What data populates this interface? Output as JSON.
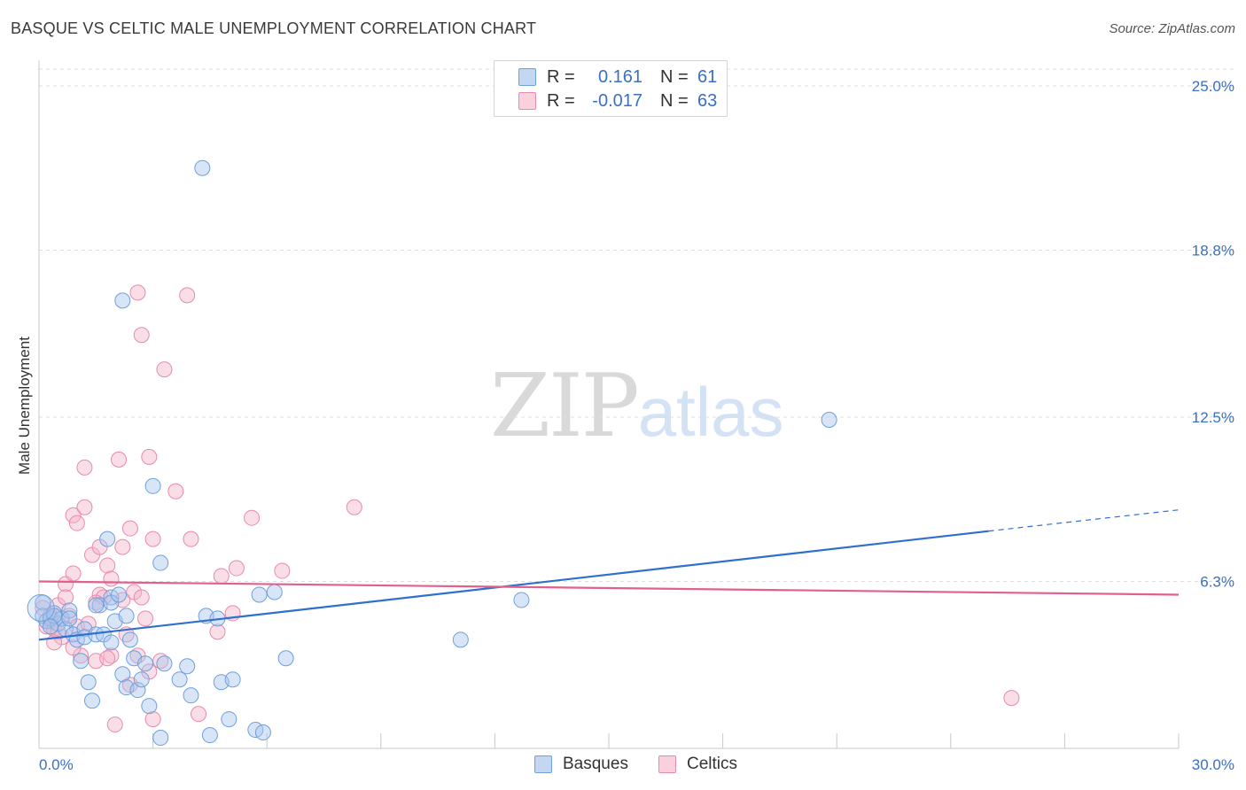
{
  "header": {
    "title": "BASQUE VS CELTIC MALE UNEMPLOYMENT CORRELATION CHART",
    "source": "Source: ZipAtlas.com"
  },
  "watermark": {
    "zip": "ZIP",
    "atlas": "atlas"
  },
  "legend_top": {
    "rows": [
      {
        "r_label": "R =",
        "r_value": "0.161",
        "n_label": "N =",
        "n_value": "61",
        "color": "#a9c6ee"
      },
      {
        "r_label": "R =",
        "r_value": "-0.017",
        "n_label": "N =",
        "n_value": "63",
        "color": "#f5b6c9"
      }
    ]
  },
  "legend_bottom": {
    "items": [
      {
        "label": "Basques",
        "color": "#a9c6ee"
      },
      {
        "label": "Celtics",
        "color": "#f5b6c9"
      }
    ]
  },
  "chart_data": {
    "type": "scatter",
    "title": "BASQUE VS CELTIC MALE UNEMPLOYMENT CORRELATION CHART",
    "xlabel": "",
    "ylabel": "Male Unemployment",
    "xlim": [
      0,
      30
    ],
    "ylim": [
      0,
      25
    ],
    "x_tick_labels": [
      "0.0%",
      "30.0%"
    ],
    "y_ticks": [
      6.3,
      12.5,
      18.8,
      25.0
    ],
    "y_tick_labels": [
      "6.3%",
      "12.5%",
      "18.8%",
      "25.0%"
    ],
    "grid": true,
    "legend_placement": "top-center and bottom",
    "colors": {
      "basques_fill": "#a9c6ee",
      "basques_stroke": "#6f9fdc",
      "basques_line": "#2e6fcf",
      "celtics_fill": "#f5b6c9",
      "celtics_stroke": "#e98aa8",
      "celtics_line": "#e0608e",
      "tick_label": "#3a6fc4"
    },
    "series": [
      {
        "name": "Basques",
        "trend": {
          "x": [
            0,
            25,
            30
          ],
          "y": [
            4.1,
            8.2,
            9.0
          ],
          "dashed_from": 25
        },
        "points": [
          [
            0.1,
            5.5
          ],
          [
            0.1,
            5.0
          ],
          [
            0.2,
            4.8
          ],
          [
            0.3,
            4.9
          ],
          [
            0.4,
            5.1
          ],
          [
            0.5,
            4.7
          ],
          [
            0.6,
            4.9
          ],
          [
            0.7,
            4.5
          ],
          [
            0.8,
            5.2
          ],
          [
            0.9,
            4.3
          ],
          [
            1.0,
            4.1
          ],
          [
            1.1,
            3.3
          ],
          [
            1.2,
            4.5
          ],
          [
            1.2,
            4.2
          ],
          [
            1.3,
            2.5
          ],
          [
            1.4,
            1.8
          ],
          [
            1.5,
            4.3
          ],
          [
            1.6,
            5.4
          ],
          [
            1.7,
            4.3
          ],
          [
            1.8,
            7.9
          ],
          [
            1.9,
            5.7
          ],
          [
            1.9,
            5.5
          ],
          [
            2.0,
            4.8
          ],
          [
            2.1,
            5.8
          ],
          [
            2.2,
            2.8
          ],
          [
            2.3,
            2.3
          ],
          [
            2.3,
            5.0
          ],
          [
            2.4,
            4.1
          ],
          [
            2.5,
            3.4
          ],
          [
            2.6,
            2.2
          ],
          [
            2.8,
            3.2
          ],
          [
            2.9,
            1.6
          ],
          [
            3.0,
            9.9
          ],
          [
            3.2,
            7.0
          ],
          [
            3.3,
            3.2
          ],
          [
            3.7,
            2.6
          ],
          [
            3.9,
            3.1
          ],
          [
            4.0,
            2.0
          ],
          [
            4.3,
            21.9
          ],
          [
            4.4,
            5.0
          ],
          [
            4.5,
            0.5
          ],
          [
            4.7,
            4.9
          ],
          [
            4.8,
            2.5
          ],
          [
            5.0,
            1.1
          ],
          [
            5.1,
            2.6
          ],
          [
            5.7,
            0.7
          ],
          [
            5.8,
            5.8
          ],
          [
            5.9,
            0.6
          ],
          [
            6.2,
            5.9
          ],
          [
            6.5,
            3.4
          ],
          [
            11.1,
            4.1
          ],
          [
            12.7,
            5.6
          ],
          [
            20.8,
            12.4
          ],
          [
            2.2,
            16.9
          ],
          [
            3.2,
            0.4
          ],
          [
            0.4,
            5.0
          ],
          [
            0.8,
            4.9
          ],
          [
            1.5,
            5.4
          ],
          [
            0.3,
            4.6
          ],
          [
            1.9,
            4.0
          ],
          [
            2.7,
            2.6
          ]
        ]
      },
      {
        "name": "Celtics",
        "trend": {
          "x": [
            0,
            30
          ],
          "y": [
            6.3,
            5.8
          ]
        },
        "points": [
          [
            0.1,
            5.3
          ],
          [
            0.2,
            4.6
          ],
          [
            0.3,
            4.8
          ],
          [
            0.4,
            4.5
          ],
          [
            0.5,
            5.4
          ],
          [
            0.6,
            4.2
          ],
          [
            0.7,
            6.2
          ],
          [
            0.7,
            5.7
          ],
          [
            0.8,
            5.0
          ],
          [
            0.9,
            8.8
          ],
          [
            0.9,
            6.6
          ],
          [
            1.0,
            4.6
          ],
          [
            1.0,
            8.5
          ],
          [
            1.1,
            3.5
          ],
          [
            1.2,
            10.6
          ],
          [
            1.2,
            9.1
          ],
          [
            1.4,
            7.3
          ],
          [
            1.5,
            3.3
          ],
          [
            1.6,
            5.8
          ],
          [
            1.6,
            7.6
          ],
          [
            1.7,
            5.7
          ],
          [
            1.8,
            6.9
          ],
          [
            1.9,
            6.4
          ],
          [
            1.9,
            3.5
          ],
          [
            2.0,
            0.9
          ],
          [
            2.1,
            10.9
          ],
          [
            2.2,
            7.6
          ],
          [
            2.3,
            4.3
          ],
          [
            2.4,
            8.3
          ],
          [
            2.5,
            5.9
          ],
          [
            2.6,
            3.5
          ],
          [
            2.6,
            17.2
          ],
          [
            2.7,
            5.7
          ],
          [
            2.7,
            15.6
          ],
          [
            2.8,
            4.9
          ],
          [
            2.9,
            11.0
          ],
          [
            3.0,
            1.1
          ],
          [
            3.0,
            7.9
          ],
          [
            3.2,
            3.3
          ],
          [
            3.3,
            14.3
          ],
          [
            3.6,
            9.7
          ],
          [
            3.9,
            17.1
          ],
          [
            4.0,
            7.9
          ],
          [
            4.2,
            1.3
          ],
          [
            4.7,
            4.4
          ],
          [
            4.8,
            6.5
          ],
          [
            5.1,
            5.1
          ],
          [
            5.2,
            6.8
          ],
          [
            5.6,
            8.7
          ],
          [
            6.4,
            6.7
          ],
          [
            8.3,
            9.1
          ],
          [
            25.6,
            1.9
          ],
          [
            0.3,
            5.0
          ],
          [
            0.5,
            4.4
          ],
          [
            0.6,
            4.9
          ],
          [
            0.9,
            3.8
          ],
          [
            1.3,
            4.7
          ],
          [
            1.8,
            3.4
          ],
          [
            2.4,
            2.4
          ],
          [
            2.9,
            2.9
          ],
          [
            0.4,
            4.0
          ],
          [
            1.5,
            5.5
          ],
          [
            2.2,
            5.6
          ]
        ]
      }
    ]
  }
}
